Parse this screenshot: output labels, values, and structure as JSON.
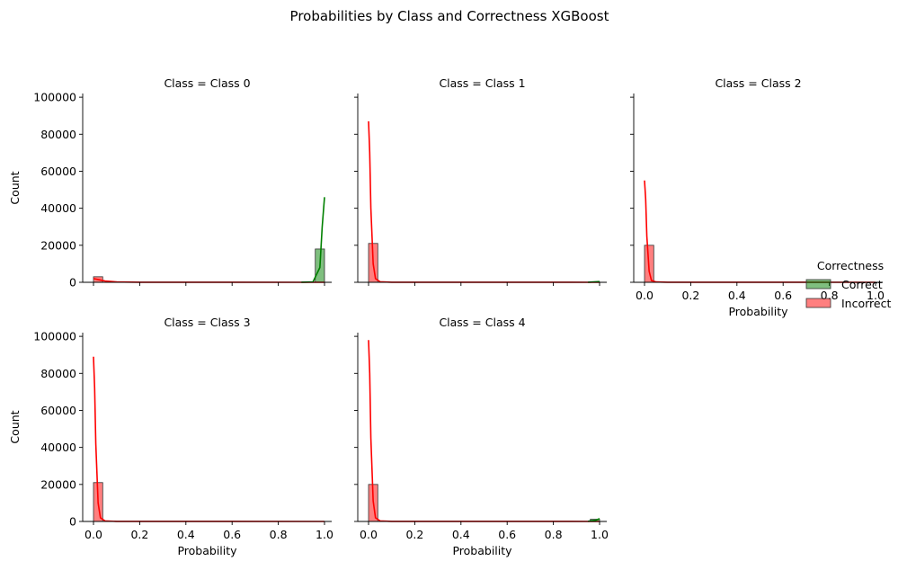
{
  "figure": {
    "title": "Probabilities by Class and Correctness XGBoost"
  },
  "chart_data": {
    "type": "bar",
    "subtype": "histogram-with-kde",
    "x_label": "Probability",
    "y_label": "Count",
    "xlim": [
      0,
      1
    ],
    "ylim": [
      0,
      100000
    ],
    "x_ticks": [
      "0.0",
      "0.2",
      "0.4",
      "0.6",
      "0.8",
      "1.0"
    ],
    "y_ticks": [
      "0",
      "20000",
      "40000",
      "60000",
      "80000",
      "100000"
    ],
    "grid": false,
    "legend": {
      "title": "Correctness",
      "position": "right",
      "entries": [
        {
          "name": "Correct",
          "color": "#008000"
        },
        {
          "name": "Incorrect",
          "color": "#ff0000"
        }
      ]
    },
    "colors": {
      "Correct": "#008000",
      "Incorrect": "#ff0000"
    },
    "bin_width": 0.04,
    "facets": [
      {
        "title": "Class = Class 0",
        "bins": [
          {
            "x0": 0.0,
            "x1": 0.04,
            "correctness": "Incorrect",
            "count": 3000
          },
          {
            "x0": 0.96,
            "x1": 1.0,
            "correctness": "Correct",
            "count": 18000
          }
        ],
        "kde": [
          {
            "correctness": "Incorrect",
            "x": [
              0.0,
              0.02,
              0.05,
              0.1,
              0.2,
              0.5,
              1.0
            ],
            "y": [
              2000,
              1500,
              700,
              200,
              40,
              10,
              5
            ]
          },
          {
            "correctness": "Correct",
            "x": [
              0.9,
              0.95,
              0.98,
              0.99,
              1.0
            ],
            "y": [
              20,
              200,
              8000,
              30000,
              46000
            ]
          }
        ]
      },
      {
        "title": "Class = Class 1",
        "bins": [
          {
            "x0": 0.0,
            "x1": 0.04,
            "correctness": "Incorrect",
            "count": 21000
          },
          {
            "x0": 0.96,
            "x1": 1.0,
            "correctness": "Correct",
            "count": 200
          }
        ],
        "kde": [
          {
            "correctness": "Incorrect",
            "x": [
              0.0,
              0.005,
              0.01,
              0.02,
              0.03,
              0.05,
              0.1,
              1.0
            ],
            "y": [
              87000,
              70000,
              40000,
              10000,
              2000,
              300,
              20,
              5
            ]
          },
          {
            "correctness": "Correct",
            "x": [
              0.95,
              1.0
            ],
            "y": [
              50,
              400
            ]
          }
        ]
      },
      {
        "title": "Class = Class 2",
        "bins": [
          {
            "x0": 0.0,
            "x1": 0.04,
            "correctness": "Incorrect",
            "count": 20000
          }
        ],
        "kde": [
          {
            "correctness": "Incorrect",
            "x": [
              0.0,
              0.005,
              0.01,
              0.02,
              0.03,
              0.05,
              0.1,
              1.0
            ],
            "y": [
              55000,
              45000,
              25000,
              6000,
              1000,
              200,
              20,
              5
            ]
          }
        ]
      },
      {
        "title": "Class = Class 3",
        "bins": [
          {
            "x0": 0.0,
            "x1": 0.04,
            "correctness": "Incorrect",
            "count": 21000
          }
        ],
        "kde": [
          {
            "correctness": "Incorrect",
            "x": [
              0.0,
              0.005,
              0.01,
              0.02,
              0.03,
              0.05,
              0.1,
              1.0
            ],
            "y": [
              89000,
              72000,
              42000,
              10000,
              2000,
              300,
              20,
              5
            ]
          }
        ]
      },
      {
        "title": "Class = Class 4",
        "bins": [
          {
            "x0": 0.0,
            "x1": 0.04,
            "correctness": "Incorrect",
            "count": 20000
          },
          {
            "x0": 0.96,
            "x1": 1.0,
            "correctness": "Correct",
            "count": 1200
          }
        ],
        "kde": [
          {
            "correctness": "Incorrect",
            "x": [
              0.0,
              0.005,
              0.01,
              0.02,
              0.03,
              0.05,
              0.1,
              1.0
            ],
            "y": [
              98000,
              80000,
              45000,
              11000,
              2000,
              300,
              20,
              5
            ]
          },
          {
            "correctness": "Correct",
            "x": [
              0.95,
              0.98,
              1.0
            ],
            "y": [
              100,
              500,
              1500
            ]
          }
        ]
      }
    ]
  }
}
